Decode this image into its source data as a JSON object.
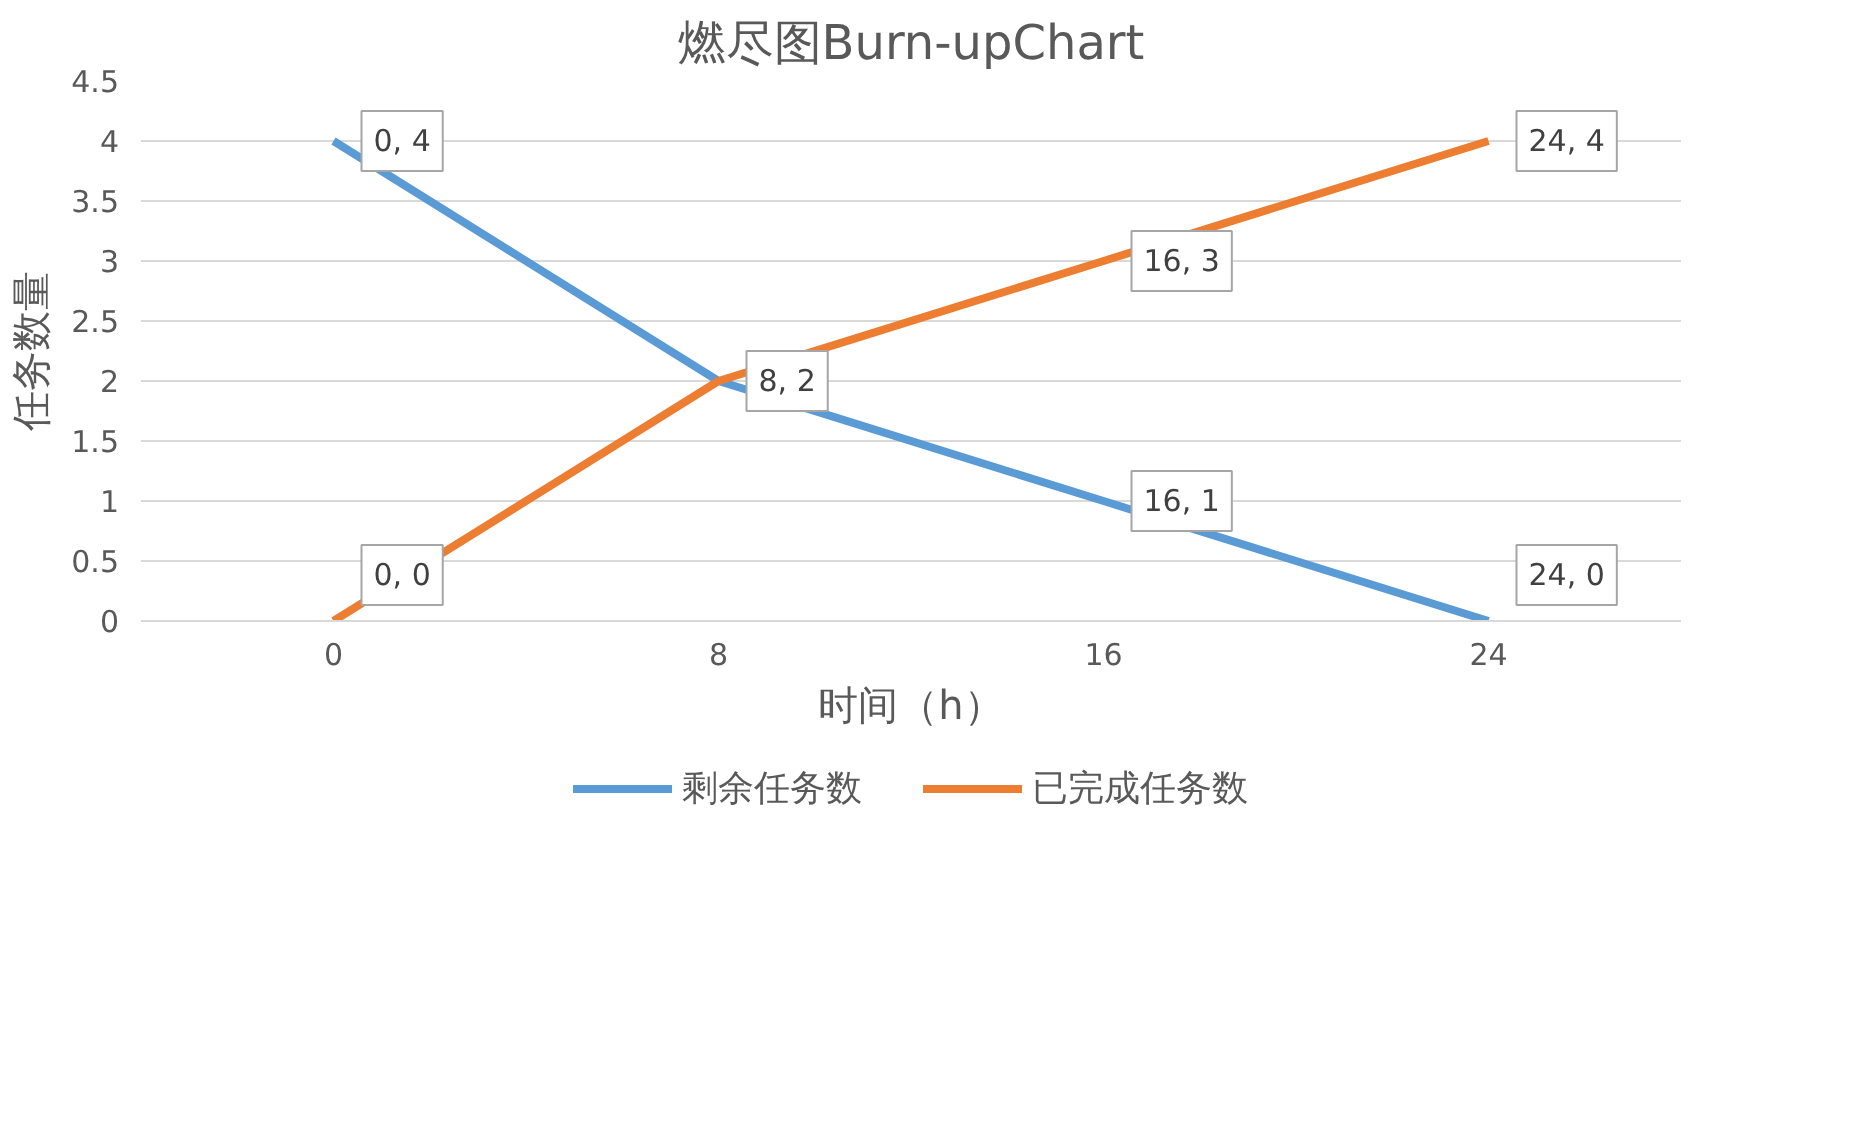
{
  "chart_data": {
    "type": "line",
    "title": "燃尽图Burn-upChart",
    "xlabel": "时间（h）",
    "ylabel": "任务数量",
    "categories": [
      "0",
      "8",
      "16",
      "24"
    ],
    "series": [
      {
        "name": "剩余任务数",
        "color": "#5b9bd5",
        "values": [
          4,
          2,
          1,
          0
        ],
        "value_labels": [
          "0, 4",
          "8, 2",
          "16, 1",
          "24, 0"
        ]
      },
      {
        "name": "已完成任务数",
        "color": "#ed7d31",
        "values": [
          0,
          2,
          3,
          4
        ],
        "value_labels": [
          "0, 0",
          null,
          "16, 3",
          "24, 4"
        ]
      }
    ],
    "ylim": [
      0,
      4.5
    ],
    "yticks": [
      0,
      0.5,
      1,
      1.5,
      2,
      2.5,
      3,
      3.5,
      4,
      4.5
    ],
    "grid": "y",
    "legend": "bottom",
    "marker": "none",
    "line_style": "solid"
  }
}
